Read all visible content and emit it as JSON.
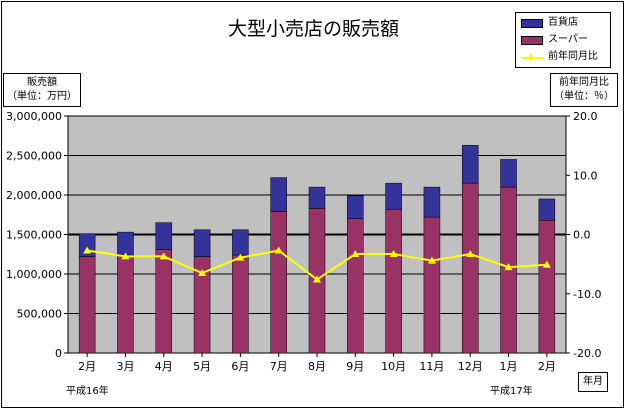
{
  "chart_data": {
    "type": "bar",
    "title": "大型小売店の販売額",
    "left_axis_title": [
      "販売額",
      "（単位：万円）"
    ],
    "right_axis_title": [
      "前年同月比",
      "（単位：％）"
    ],
    "x_axis_title": "年月",
    "era_labels": [
      "平成16年",
      "平成17年"
    ],
    "categories": [
      "2月",
      "3月",
      "4月",
      "5月",
      "6月",
      "7月",
      "8月",
      "9月",
      "10月",
      "11月",
      "12月",
      "1月",
      "2月"
    ],
    "stacked": true,
    "series": [
      {
        "name": "スーパー",
        "color": "#993366",
        "values": [
          1220000,
          1240000,
          1310000,
          1220000,
          1240000,
          1790000,
          1830000,
          1700000,
          1820000,
          1720000,
          2150000,
          2100000,
          1680000
        ]
      },
      {
        "name": "百貨店",
        "color": "#333399",
        "values": [
          290000,
          290000,
          340000,
          340000,
          320000,
          430000,
          270000,
          290000,
          330000,
          380000,
          480000,
          350000,
          270000
        ]
      }
    ],
    "line_series": {
      "name": "前年同月比",
      "color": "#ffff00",
      "values": [
        -2.7,
        -3.7,
        -3.7,
        -6.5,
        -3.9,
        -2.7,
        -7.6,
        -3.3,
        -3.3,
        -4.4,
        -3.3,
        -5.5,
        -5.1
      ]
    },
    "left_axis": {
      "min": 0,
      "max": 3000000,
      "step": 500000,
      "tick_labels": [
        "0",
        "500,000",
        "1,000,000",
        "1,500,000",
        "2,000,000",
        "2,500,000",
        "3,000,000"
      ]
    },
    "right_axis": {
      "min": -20,
      "max": 20,
      "step": 10,
      "tick_labels": [
        "-20.0",
        "-10.0",
        "0.0",
        "10.0",
        "20.0"
      ]
    },
    "plot_background": "#c0c0c0",
    "gridlines": true,
    "legend_position": "top-right"
  }
}
